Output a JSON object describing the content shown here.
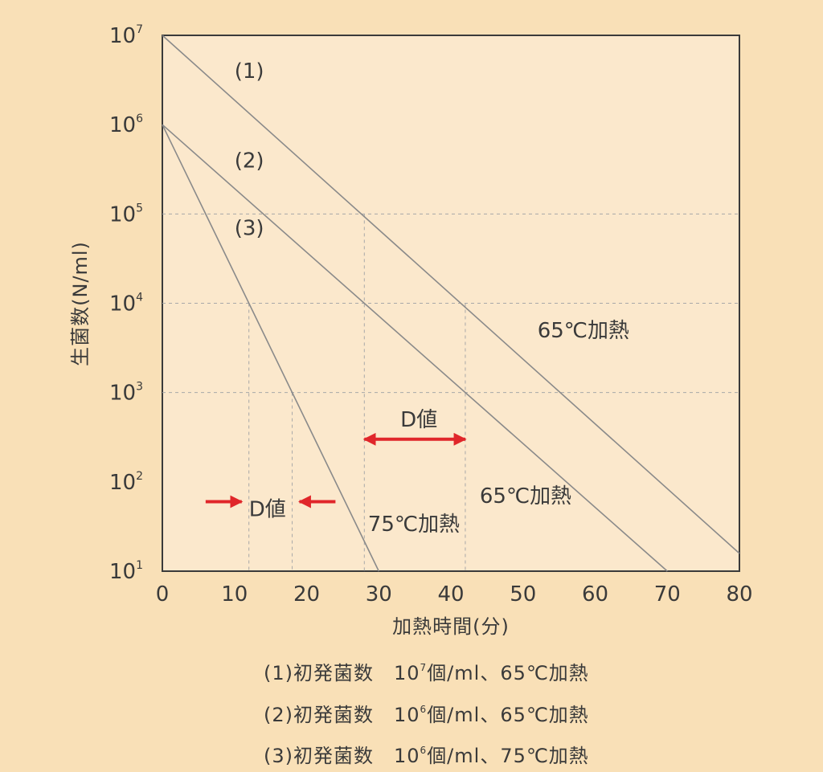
{
  "chart_data": {
    "type": "line",
    "xlabel": "加熱時間(分)",
    "ylabel": "生菌数(N/ml)",
    "xlim": [
      0,
      80
    ],
    "ylim": [
      10,
      10000000
    ],
    "y_scale": "log",
    "xticks": [
      "0",
      "10",
      "20",
      "30",
      "40",
      "50",
      "60",
      "70",
      "80"
    ],
    "yticks": [
      {
        "base": "10",
        "exp": "1",
        "value": 10
      },
      {
        "base": "10",
        "exp": "2",
        "value": 100
      },
      {
        "base": "10",
        "exp": "3",
        "value": 1000
      },
      {
        "base": "10",
        "exp": "4",
        "value": 10000
      },
      {
        "base": "10",
        "exp": "5",
        "value": 100000
      },
      {
        "base": "10",
        "exp": "6",
        "value": 1000000
      },
      {
        "base": "10",
        "exp": "7",
        "value": 10000000
      }
    ],
    "series": [
      {
        "name": "(1)",
        "points": [
          [
            0,
            10000000
          ],
          [
            80,
            15.8
          ]
        ]
      },
      {
        "name": "(2)",
        "points": [
          [
            0,
            1000000
          ],
          [
            70,
            10
          ]
        ]
      },
      {
        "name": "(3)",
        "points": [
          [
            0,
            1000000
          ],
          [
            30,
            10
          ]
        ]
      }
    ],
    "reference_lines": {
      "vertical": [
        {
          "x": 12,
          "y_to": 10000
        },
        {
          "x": 18,
          "y_to": 1000
        },
        {
          "x": 28,
          "y_to": 100000
        },
        {
          "x": 42,
          "y_to": 10000
        }
      ],
      "horizontal": [
        {
          "y": 100000,
          "x_to": 80
        },
        {
          "y": 10000,
          "x_to": 80
        },
        {
          "y": 1000,
          "x_to": 80
        }
      ]
    },
    "annotations": [
      {
        "text": "(1)",
        "x": 10,
        "y": 4000000
      },
      {
        "text": "(2)",
        "x": 10,
        "y": 400000
      },
      {
        "text": "(3)",
        "x": 10,
        "y": 70000
      },
      {
        "text": "65℃加熱",
        "x": 52,
        "y": 5000
      },
      {
        "text": "65℃加熱",
        "x": 44,
        "y": 70
      },
      {
        "text": "75℃加熱",
        "x": 28.5,
        "y": 34
      },
      {
        "text": "D値",
        "x": 33,
        "y": 500
      },
      {
        "text": "D値",
        "x": 12,
        "y": 50
      }
    ],
    "arrows": [
      {
        "type": "double",
        "x_from": 28,
        "x_to": 42,
        "y": 300
      },
      {
        "type": "single",
        "x_from": 6,
        "x_to": 11,
        "y": 60
      },
      {
        "type": "single",
        "x_from": 24,
        "x_to": 19,
        "y": 60
      }
    ],
    "colors": {
      "background": "#f9e0b7",
      "plot_area": "#fbe8cc",
      "line": "#8a8a8a",
      "grid": "#a8a8a8",
      "text": "#3a3a3a",
      "arrow": "#e0262a"
    }
  },
  "legend": [
    {
      "prefix": "(1)初発菌数　10",
      "exp": "7",
      "suffix": "個/ml、65℃加熱"
    },
    {
      "prefix": "(2)初発菌数　10",
      "exp": "6",
      "suffix": "個/ml、65℃加熱"
    },
    {
      "prefix": "(3)初発菌数　10",
      "exp": "6",
      "suffix": "個/ml、75℃加熱"
    }
  ]
}
